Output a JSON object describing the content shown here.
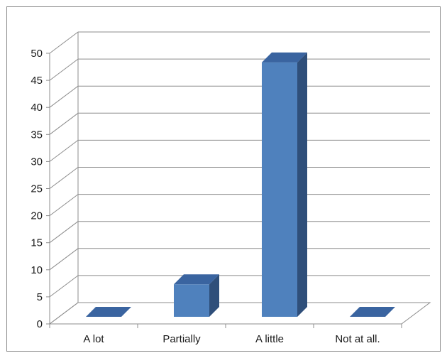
{
  "chart_data": {
    "type": "bar",
    "style": "3d-column",
    "categories": [
      "A lot",
      "Partially",
      "A little",
      "Not at all."
    ],
    "values": [
      0,
      6,
      47,
      0
    ],
    "ylim": [
      0,
      50
    ],
    "yticks": [
      "0",
      "5",
      "10",
      "15",
      "20",
      "25",
      "30",
      "35",
      "40",
      "45",
      "50"
    ],
    "grid": true,
    "legend": "none",
    "colors": {
      "bar_front": "#4f81bd",
      "bar_side": "#2f4f7a",
      "bar_top": "#3a64a0",
      "gridline": "#8c8c8c",
      "axis": "#8c8c8c"
    }
  }
}
